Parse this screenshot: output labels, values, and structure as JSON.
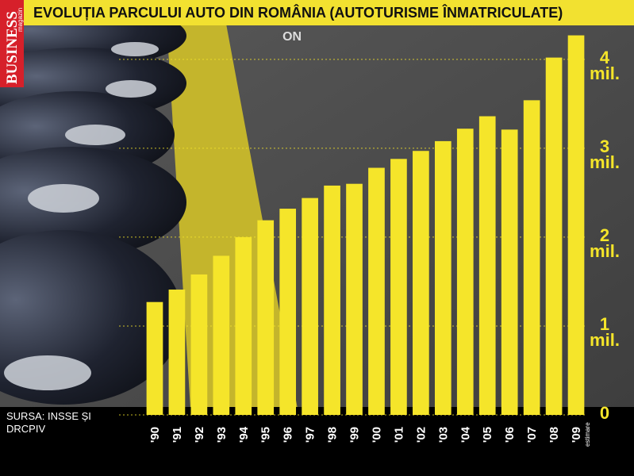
{
  "brand": {
    "name": "BUSINESS",
    "tagline": "magazin"
  },
  "chart_data": {
    "type": "bar",
    "title": "EVOLUȚIA PARCULUI AUTO DIN ROMÂNIA (AUTOTURISME ÎNMATRICULATE)",
    "source": "SURSA: INSSE ȘI DRCPIV",
    "annotation": "estimare",
    "categories": [
      "'90",
      "'91",
      "'92",
      "'93",
      "'94",
      "'95",
      "'96",
      "'97",
      "'98",
      "'99",
      "'00",
      "'01",
      "'02",
      "'03",
      "'04",
      "'05",
      "'06",
      "'07",
      "'08",
      "'09"
    ],
    "values": [
      1.27,
      1.41,
      1.58,
      1.79,
      2.0,
      2.19,
      2.32,
      2.44,
      2.58,
      2.6,
      2.78,
      2.88,
      2.97,
      3.08,
      3.22,
      3.36,
      3.21,
      3.54,
      4.02,
      4.27
    ],
    "color": "#f5e52a",
    "ylim": [
      0,
      4.4
    ],
    "yticks": [
      0,
      {
        "value": 1,
        "label": "1 mil."
      },
      {
        "value": 2,
        "label": "2 mil."
      },
      {
        "value": 3,
        "label": "3 mil."
      },
      {
        "value": 4,
        "label": "4 mil."
      }
    ],
    "grid": true
  }
}
